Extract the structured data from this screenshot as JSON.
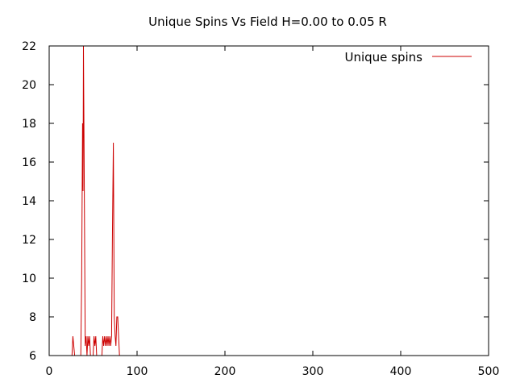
{
  "chart_data": {
    "type": "line",
    "title": "Unique Spins Vs Field H=0.00 to 0.05 R",
    "xlabel": "",
    "ylabel": "",
    "xlim": [
      0,
      500
    ],
    "ylim": [
      6,
      22
    ],
    "x_ticks": [
      "0",
      "100",
      "200",
      "300",
      "400",
      "500"
    ],
    "y_ticks": [
      "6",
      "8",
      "10",
      "12",
      "14",
      "16",
      "18",
      "20",
      "22"
    ],
    "grid": false,
    "legend_position": "top-right",
    "series": [
      {
        "name": "Unique spins",
        "color": "#cc0000",
        "points": [
          [
            26,
            6
          ],
          [
            27,
            7
          ],
          [
            28,
            6.5
          ],
          [
            29,
            6
          ],
          [
            36,
            6
          ],
          [
            37,
            10
          ],
          [
            38,
            18
          ],
          [
            38.5,
            14.5
          ],
          [
            39,
            22
          ],
          [
            40,
            14.5
          ],
          [
            41,
            6.5
          ],
          [
            42,
            7
          ],
          [
            43,
            6
          ],
          [
            44,
            7
          ],
          [
            45,
            6.5
          ],
          [
            46,
            7
          ],
          [
            47,
            6
          ],
          [
            50,
            6
          ],
          [
            51,
            7
          ],
          [
            52,
            6.5
          ],
          [
            53,
            7
          ],
          [
            54,
            6
          ],
          [
            60,
            6
          ],
          [
            61,
            7
          ],
          [
            62,
            6.5
          ],
          [
            63,
            7
          ],
          [
            64,
            6.5
          ],
          [
            65,
            7
          ],
          [
            66,
            6.5
          ],
          [
            67,
            7
          ],
          [
            68,
            6.5
          ],
          [
            69,
            7
          ],
          [
            70,
            6.5
          ],
          [
            71,
            7
          ],
          [
            72,
            12.5
          ],
          [
            73,
            17
          ],
          [
            74,
            8
          ],
          [
            75,
            7
          ],
          [
            76,
            6.5
          ],
          [
            77,
            8
          ],
          [
            78,
            8
          ],
          [
            79,
            7
          ],
          [
            80,
            6
          ]
        ]
      }
    ]
  }
}
